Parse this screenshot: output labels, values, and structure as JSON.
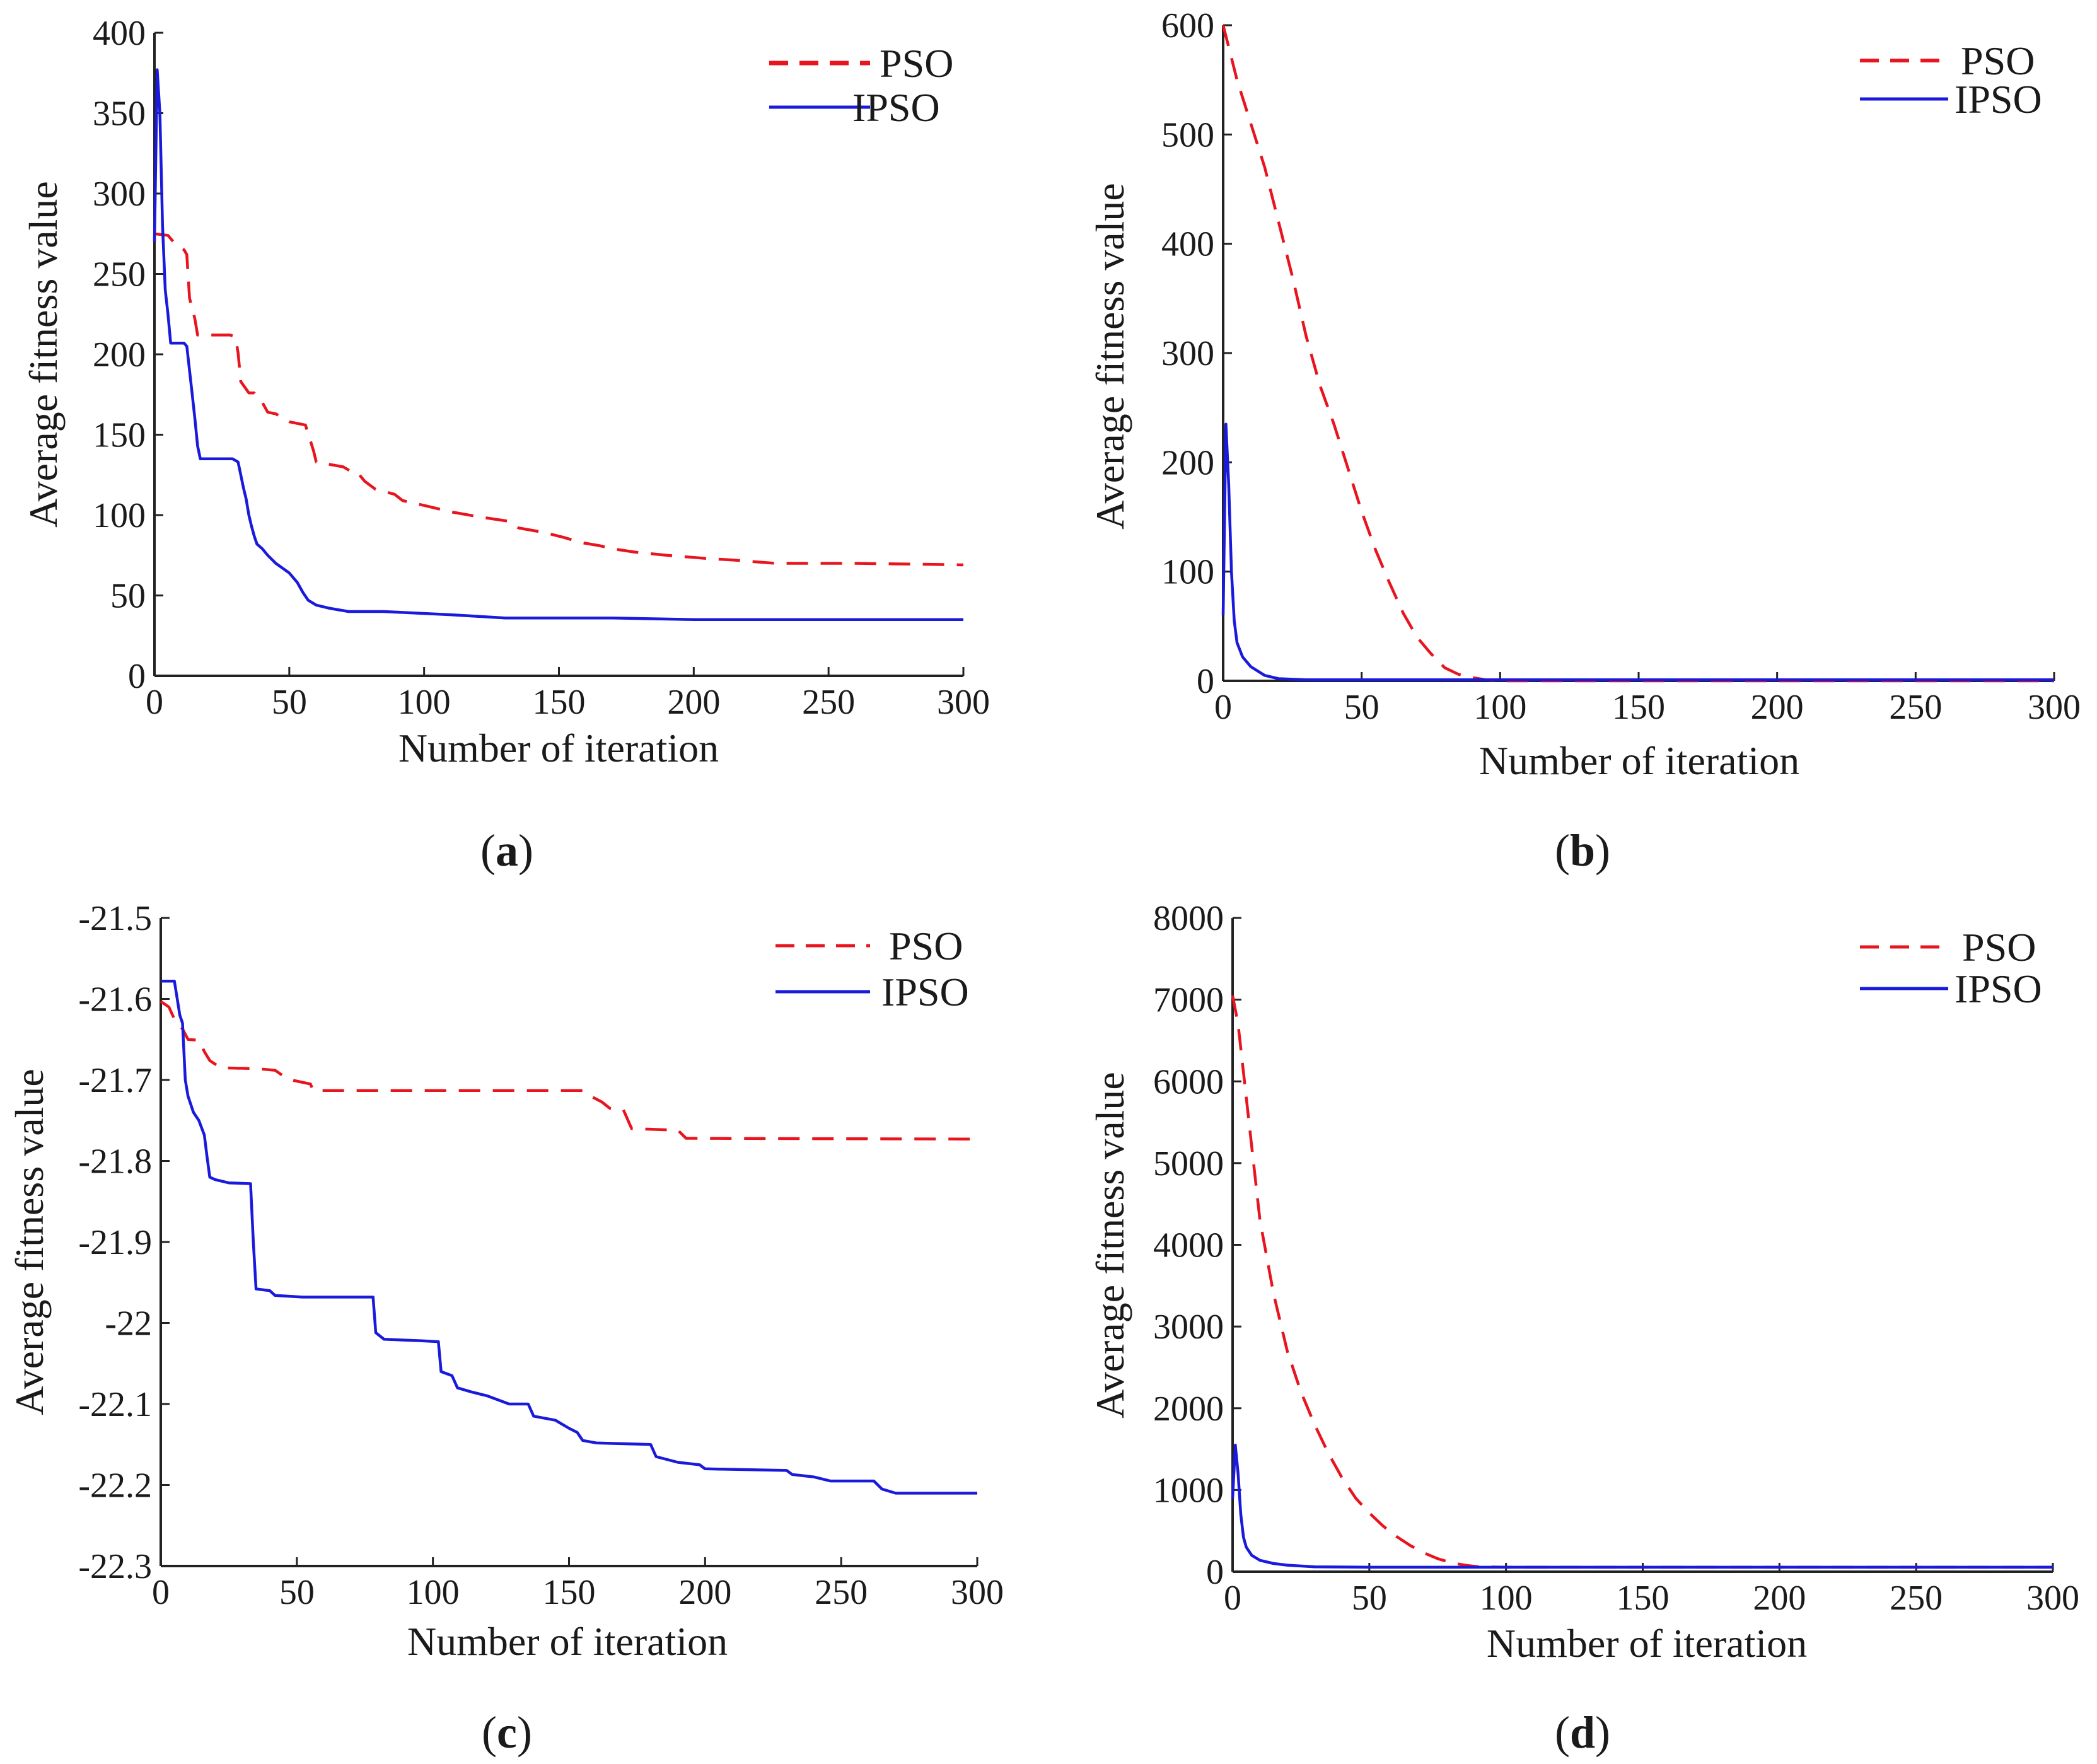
{
  "figure": {
    "panels": [
      {
        "caption_letter": "a"
      },
      {
        "caption_letter": "b"
      },
      {
        "caption_letter": "c"
      },
      {
        "caption_letter": "d"
      }
    ]
  },
  "colors": {
    "pso": "#e8141e",
    "ipso": "#1a1adc",
    "axis": "#222222"
  },
  "chart_data": [
    {
      "type": "line",
      "panel": "(a)",
      "xlabel": "Number of iteration",
      "ylabel": "Average fitness value",
      "xlim": [
        0,
        300
      ],
      "ylim": [
        0,
        400
      ],
      "xticks": [
        0,
        50,
        100,
        150,
        200,
        250,
        300
      ],
      "yticks": [
        0,
        50,
        100,
        150,
        200,
        250,
        300,
        350,
        400
      ],
      "xtick_labels": [
        "0",
        "50",
        "100",
        "150",
        "200",
        "250",
        "300"
      ],
      "ytick_labels": [
        "0",
        "50",
        "100",
        "150",
        "200",
        "250",
        "300",
        "350",
        "400"
      ],
      "legend_position": "top-right",
      "series": [
        {
          "name": "PSO",
          "style": "dashed",
          "points": [
            [
              0,
              275
            ],
            [
              5,
              274
            ],
            [
              8,
              268
            ],
            [
              11,
              265
            ],
            [
              12,
              262
            ],
            [
              13,
              235
            ],
            [
              15,
              222
            ],
            [
              16,
              212
            ],
            [
              28,
              212
            ],
            [
              30,
              211
            ],
            [
              31,
              201
            ],
            [
              32,
              183
            ],
            [
              35,
              176
            ],
            [
              37,
              176
            ],
            [
              40,
              170
            ],
            [
              42,
              164
            ],
            [
              45,
              163
            ],
            [
              50,
              158
            ],
            [
              56,
              156
            ],
            [
              59,
              140
            ],
            [
              60,
              133
            ],
            [
              70,
              130
            ],
            [
              73,
              127
            ],
            [
              75,
              127
            ],
            [
              78,
              121
            ],
            [
              82,
              116
            ],
            [
              89,
              113
            ],
            [
              92,
              109
            ],
            [
              100,
              106
            ],
            [
              110,
              102
            ],
            [
              120,
              99
            ],
            [
              132,
              96
            ],
            [
              135,
              92
            ],
            [
              145,
              89
            ],
            [
              152,
              86
            ],
            [
              158,
              83
            ],
            [
              165,
              81
            ],
            [
              170,
              79
            ],
            [
              178,
              77
            ],
            [
              190,
              75
            ],
            [
              205,
              73
            ],
            [
              215,
              72
            ],
            [
              230,
              70
            ],
            [
              260,
              70
            ],
            [
              300,
              69
            ]
          ]
        },
        {
          "name": "IPSO",
          "style": "solid",
          "points": [
            [
              0,
              270
            ],
            [
              1,
              377
            ],
            [
              2,
              350
            ],
            [
              3,
              280
            ],
            [
              4,
              240
            ],
            [
              5,
              225
            ],
            [
              6,
              207
            ],
            [
              11,
              207
            ],
            [
              12,
              205
            ],
            [
              13,
              190
            ],
            [
              14,
              175
            ],
            [
              15,
              160
            ],
            [
              16,
              143
            ],
            [
              17,
              135
            ],
            [
              29,
              135
            ],
            [
              31,
              133
            ],
            [
              32,
              125
            ],
            [
              33,
              117
            ],
            [
              34,
              110
            ],
            [
              35,
              100
            ],
            [
              36,
              93
            ],
            [
              37,
              87
            ],
            [
              38,
              82
            ],
            [
              40,
              79
            ],
            [
              42,
              75
            ],
            [
              45,
              70
            ],
            [
              50,
              64
            ],
            [
              53,
              58
            ],
            [
              55,
              52
            ],
            [
              57,
              47
            ],
            [
              60,
              44
            ],
            [
              65,
              42
            ],
            [
              72,
              40
            ],
            [
              85,
              40
            ],
            [
              110,
              38
            ],
            [
              130,
              36
            ],
            [
              150,
              36
            ],
            [
              170,
              36
            ],
            [
              200,
              35
            ],
            [
              300,
              35
            ]
          ]
        }
      ]
    },
    {
      "type": "line",
      "panel": "(b)",
      "xlabel": "Number of iteration",
      "ylabel": "Average fitness value",
      "xlim": [
        0,
        300
      ],
      "ylim": [
        0,
        600
      ],
      "xticks": [
        0,
        50,
        100,
        150,
        200,
        250,
        300
      ],
      "yticks": [
        0,
        100,
        200,
        300,
        400,
        500,
        600
      ],
      "xtick_labels": [
        "0",
        "50",
        "100",
        "150",
        "200",
        "250",
        "300"
      ],
      "ytick_labels": [
        "0",
        "100",
        "200",
        "300",
        "400",
        "500",
        "600"
      ],
      "legend_position": "top-right",
      "series": [
        {
          "name": "PSO",
          "style": "dashed",
          "points": [
            [
              0,
              600
            ],
            [
              5,
              550
            ],
            [
              10,
              510
            ],
            [
              15,
              470
            ],
            [
              20,
              420
            ],
            [
              25,
              370
            ],
            [
              30,
              315
            ],
            [
              35,
              270
            ],
            [
              40,
              235
            ],
            [
              45,
              195
            ],
            [
              50,
              155
            ],
            [
              55,
              120
            ],
            [
              60,
              90
            ],
            [
              65,
              62
            ],
            [
              70,
              40
            ],
            [
              75,
              25
            ],
            [
              80,
              12
            ],
            [
              85,
              6
            ],
            [
              90,
              3
            ],
            [
              95,
              1
            ],
            [
              100,
              0
            ],
            [
              300,
              0
            ]
          ]
        },
        {
          "name": "IPSO",
          "style": "solid",
          "points": [
            [
              0,
              60
            ],
            [
              1,
              235
            ],
            [
              2,
              180
            ],
            [
              3,
              100
            ],
            [
              4,
              55
            ],
            [
              5,
              35
            ],
            [
              7,
              22
            ],
            [
              10,
              13
            ],
            [
              15,
              5
            ],
            [
              20,
              2
            ],
            [
              30,
              1
            ],
            [
              300,
              1
            ]
          ]
        }
      ]
    },
    {
      "type": "line",
      "panel": "(c)",
      "xlabel": "Number of iteration",
      "ylabel": "Average fitness value",
      "xlim": [
        0,
        300
      ],
      "ylim": [
        -22.3,
        -21.5
      ],
      "xticks": [
        0,
        50,
        100,
        150,
        200,
        250,
        300
      ],
      "yticks": [
        -22.3,
        -22.2,
        -22.1,
        -22.0,
        -21.9,
        -21.8,
        -21.7,
        -21.6,
        -21.5
      ],
      "xtick_labels": [
        "0",
        "50",
        "100",
        "150",
        "200",
        "250",
        "300"
      ],
      "ytick_labels": [
        "-22.3",
        "-22.2",
        "-22.1",
        "-22",
        "-21.9",
        "-21.8",
        "-21.7",
        "-21.6",
        "-21.5"
      ],
      "legend_position": "top-right",
      "series": [
        {
          "name": "PSO",
          "style": "dashed",
          "points": [
            [
              0,
              -21.603
            ],
            [
              3,
              -21.61
            ],
            [
              5,
              -21.625
            ],
            [
              8,
              -21.637
            ],
            [
              10,
              -21.65
            ],
            [
              14,
              -21.651
            ],
            [
              16,
              -21.665
            ],
            [
              18,
              -21.676
            ],
            [
              22,
              -21.685
            ],
            [
              35,
              -21.686
            ],
            [
              42,
              -21.688
            ],
            [
              45,
              -21.695
            ],
            [
              48,
              -21.7
            ],
            [
              55,
              -21.705
            ],
            [
              56,
              -21.713
            ],
            [
              155,
              -21.713
            ],
            [
              158,
              -21.72
            ],
            [
              162,
              -21.727
            ],
            [
              165,
              -21.735
            ],
            [
              170,
              -21.737
            ],
            [
              173,
              -21.76
            ],
            [
              190,
              -21.762
            ],
            [
              193,
              -21.772
            ],
            [
              300,
              -21.773
            ]
          ]
        },
        {
          "name": "IPSO",
          "style": "solid",
          "points": [
            [
              0,
              -21.578
            ],
            [
              5,
              -21.578
            ],
            [
              7,
              -21.62
            ],
            [
              8,
              -21.63
            ],
            [
              9,
              -21.7
            ],
            [
              10,
              -21.72
            ],
            [
              12,
              -21.74
            ],
            [
              14,
              -21.75
            ],
            [
              16,
              -21.768
            ],
            [
              17,
              -21.795
            ],
            [
              18,
              -21.82
            ],
            [
              20,
              -21.823
            ],
            [
              25,
              -21.827
            ],
            [
              33,
              -21.828
            ],
            [
              34,
              -21.9
            ],
            [
              35,
              -21.958
            ],
            [
              40,
              -21.96
            ],
            [
              42,
              -21.966
            ],
            [
              52,
              -21.968
            ],
            [
              78,
              -21.968
            ],
            [
              79,
              -22.012
            ],
            [
              82,
              -22.02
            ],
            [
              96,
              -22.022
            ],
            [
              102,
              -22.023
            ],
            [
              103,
              -22.06
            ],
            [
              107,
              -22.065
            ],
            [
              109,
              -22.08
            ],
            [
              114,
              -22.085
            ],
            [
              120,
              -22.09
            ],
            [
              128,
              -22.1
            ],
            [
              135,
              -22.1
            ],
            [
              137,
              -22.115
            ],
            [
              145,
              -22.12
            ],
            [
              150,
              -22.13
            ],
            [
              153,
              -22.135
            ],
            [
              155,
              -22.145
            ],
            [
              160,
              -22.148
            ],
            [
              180,
              -22.15
            ],
            [
              182,
              -22.165
            ],
            [
              190,
              -22.172
            ],
            [
              198,
              -22.175
            ],
            [
              200,
              -22.18
            ],
            [
              230,
              -22.182
            ],
            [
              232,
              -22.187
            ],
            [
              240,
              -22.19
            ],
            [
              246,
              -22.195
            ],
            [
              262,
              -22.195
            ],
            [
              265,
              -22.205
            ],
            [
              270,
              -22.21
            ],
            [
              300,
              -22.21
            ]
          ]
        }
      ]
    },
    {
      "type": "line",
      "panel": "(d)",
      "xlabel": "Number of iteration",
      "ylabel": "Average fitness value",
      "xlim": [
        0,
        300
      ],
      "ylim": [
        0,
        8000
      ],
      "xticks": [
        0,
        50,
        100,
        150,
        200,
        250,
        300
      ],
      "yticks": [
        0,
        1000,
        2000,
        3000,
        4000,
        5000,
        6000,
        7000,
        8000
      ],
      "xtick_labels": [
        "0",
        "50",
        "100",
        "150",
        "200",
        "250",
        "300"
      ],
      "ytick_labels": [
        "0",
        "1000",
        "2000",
        "3000",
        "4000",
        "5000",
        "6000",
        "7000",
        "8000"
      ],
      "legend_position": "top-right",
      "series": [
        {
          "name": "PSO",
          "style": "dashed",
          "points": [
            [
              0,
              7050
            ],
            [
              2,
              6700
            ],
            [
              5,
              5800
            ],
            [
              8,
              4900
            ],
            [
              10,
              4300
            ],
            [
              15,
              3400
            ],
            [
              20,
              2700
            ],
            [
              25,
              2200
            ],
            [
              30,
              1800
            ],
            [
              35,
              1450
            ],
            [
              40,
              1150
            ],
            [
              45,
              900
            ],
            [
              50,
              720
            ],
            [
              55,
              560
            ],
            [
              60,
              430
            ],
            [
              65,
              320
            ],
            [
              70,
              230
            ],
            [
              75,
              160
            ],
            [
              80,
              110
            ],
            [
              85,
              80
            ],
            [
              90,
              60
            ],
            [
              100,
              55
            ],
            [
              300,
              55
            ]
          ]
        },
        {
          "name": "IPSO",
          "style": "solid",
          "points": [
            [
              0,
              900
            ],
            [
              1,
              1550
            ],
            [
              2,
              1200
            ],
            [
              3,
              700
            ],
            [
              4,
              420
            ],
            [
              5,
              300
            ],
            [
              7,
              200
            ],
            [
              10,
              140
            ],
            [
              15,
              100
            ],
            [
              20,
              80
            ],
            [
              30,
              60
            ],
            [
              50,
              55
            ],
            [
              300,
              55
            ]
          ]
        }
      ]
    }
  ]
}
